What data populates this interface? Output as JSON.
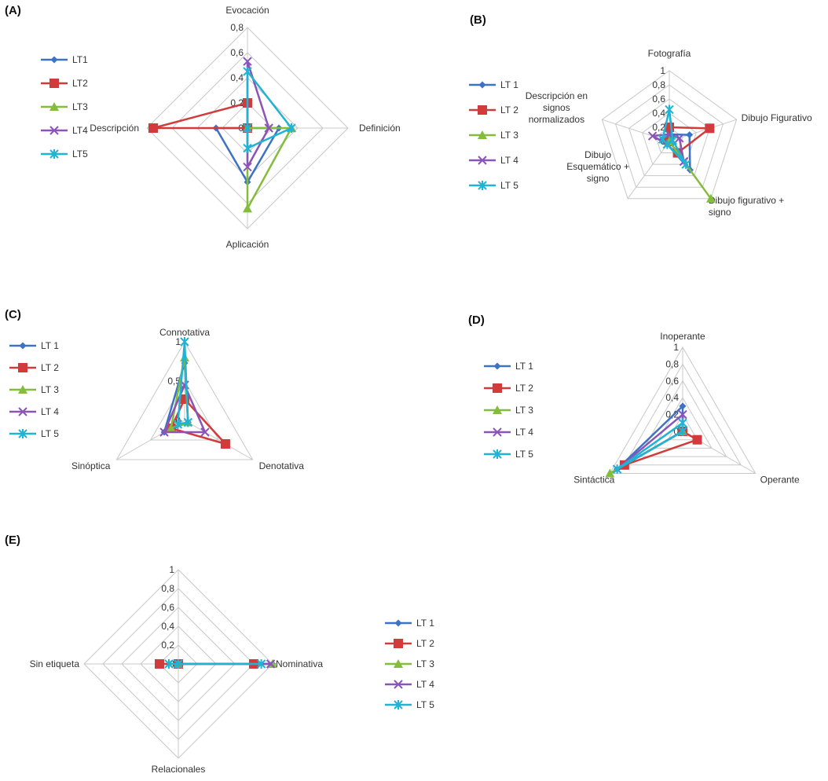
{
  "series_styles": [
    {
      "name": "LT1",
      "color": "#3d72c4",
      "marker": "diamond"
    },
    {
      "name": "LT2",
      "color": "#d13b3b",
      "marker": "square"
    },
    {
      "name": "LT3",
      "color": "#84bd3c",
      "marker": "triangle"
    },
    {
      "name": "LT4",
      "color": "#8a54b8",
      "marker": "x"
    },
    {
      "name": "LT5",
      "color": "#1fb3d4",
      "marker": "star"
    }
  ],
  "chart_data": [
    {
      "id": "A",
      "panel_label": "(A)",
      "type": "radar",
      "categories": [
        "Evocación",
        "Definición",
        "Aplicación",
        "Descripción"
      ],
      "ticks": [
        "0",
        "0,2",
        "0,4",
        "0,6",
        "0,8"
      ],
      "rmax": 0.8,
      "legend": [
        "LT1",
        "LT2",
        "LT3",
        "LT4",
        "LT5"
      ],
      "legend_position": "left",
      "series": [
        {
          "name": "LT1",
          "values": [
            0,
            0.25,
            0.43,
            0.25
          ]
        },
        {
          "name": "LT2",
          "values": [
            0.2,
            0,
            0,
            0.75
          ]
        },
        {
          "name": "LT3",
          "values": [
            0,
            0.35,
            0.64,
            0
          ]
        },
        {
          "name": "LT4",
          "values": [
            0.53,
            0.17,
            0.31,
            0
          ]
        },
        {
          "name": "LT5",
          "values": [
            0.45,
            0.35,
            0.16,
            0
          ]
        }
      ]
    },
    {
      "id": "B",
      "panel_label": "(B)",
      "type": "radar",
      "categories": [
        "Fotografía",
        "Dibujo Figurativo",
        "Dibujo figurativo + signo",
        "Dibujo Esquemático + signo",
        "Descripción en signos normalizados"
      ],
      "ticks": [
        "0",
        "0,2",
        "0,4",
        "0,6",
        "0,8",
        "1"
      ],
      "rmax": 1,
      "legend": [
        "LT 1",
        "LT 2",
        "LT 3",
        "LT 4",
        "LT 5"
      ],
      "legend_position": "left",
      "series": [
        {
          "name": "LT 1",
          "values": [
            0.1,
            0.3,
            0.5,
            0.05,
            0.1
          ]
        },
        {
          "name": "LT 2",
          "values": [
            0.2,
            0.6,
            0.2,
            0,
            0
          ]
        },
        {
          "name": "LT 3",
          "values": [
            0,
            0,
            1.0,
            0,
            0
          ]
        },
        {
          "name": "LT 4",
          "values": [
            0.1,
            0.15,
            0.35,
            0.05,
            0.25
          ]
        },
        {
          "name": "LT 5",
          "values": [
            0.45,
            0.05,
            0.4,
            0.05,
            0.1
          ]
        }
      ]
    },
    {
      "id": "C",
      "panel_label": "(C)",
      "type": "radar",
      "categories": [
        "Connotativa",
        "Denotativa",
        "Sinóptica"
      ],
      "ticks": [
        "0",
        "0,5",
        "1"
      ],
      "rmax": 1,
      "legend": [
        "LT 1",
        "LT 2",
        "LT 3",
        "LT 4",
        "LT 5"
      ],
      "legend_position": "left",
      "series": [
        {
          "name": "LT 1",
          "values": [
            0.73,
            0.05,
            0.3
          ]
        },
        {
          "name": "LT 2",
          "values": [
            0.27,
            0.6,
            0.2
          ]
        },
        {
          "name": "LT 3",
          "values": [
            0.8,
            0.05,
            0.2
          ]
        },
        {
          "name": "LT 4",
          "values": [
            0.45,
            0.3,
            0.3
          ]
        },
        {
          "name": "LT 5",
          "values": [
            1.0,
            0.05,
            0.1
          ]
        }
      ]
    },
    {
      "id": "D",
      "panel_label": "(D)",
      "type": "radar",
      "categories": [
        "Inoperante",
        "Operante",
        "Sintáctica"
      ],
      "ticks": [
        "0",
        "0,2",
        "0,4",
        "0,6",
        "0,8",
        "1"
      ],
      "rmax": 1,
      "legend": [
        "LT 1",
        "LT 2",
        "LT 3",
        "LT 4",
        "LT 5"
      ],
      "legend_position": "left",
      "series": [
        {
          "name": "LT 1",
          "values": [
            0.3,
            0,
            0.9
          ]
        },
        {
          "name": "LT 2",
          "values": [
            0,
            0.2,
            0.8
          ]
        },
        {
          "name": "LT 3",
          "values": [
            0,
            0,
            1.0
          ]
        },
        {
          "name": "LT 4",
          "values": [
            0.2,
            0,
            0.9
          ]
        },
        {
          "name": "LT 5",
          "values": [
            0.1,
            0,
            0.9
          ]
        }
      ]
    },
    {
      "id": "E",
      "panel_label": "(E)",
      "type": "radar",
      "categories": [
        "",
        "Nominativa",
        "Relacionales",
        "Sin etiqueta"
      ],
      "ticks": [
        "0",
        "0,2",
        "0,4",
        "0,6",
        "0,8",
        "1"
      ],
      "rmax": 1,
      "legend": [
        "LT 1",
        "LT 2",
        "LT 3",
        "LT 4",
        "LT 5"
      ],
      "legend_position": "right",
      "series": [
        {
          "name": "LT 1",
          "values": [
            0,
            1.0,
            0,
            0
          ]
        },
        {
          "name": "LT 2",
          "values": [
            0,
            0.8,
            0,
            0.2
          ]
        },
        {
          "name": "LT 3",
          "values": [
            0,
            1.0,
            0,
            0
          ]
        },
        {
          "name": "LT 4",
          "values": [
            0,
            0.98,
            0,
            0
          ]
        },
        {
          "name": "LT 5",
          "values": [
            0,
            0.88,
            0,
            0.1
          ]
        }
      ]
    }
  ]
}
